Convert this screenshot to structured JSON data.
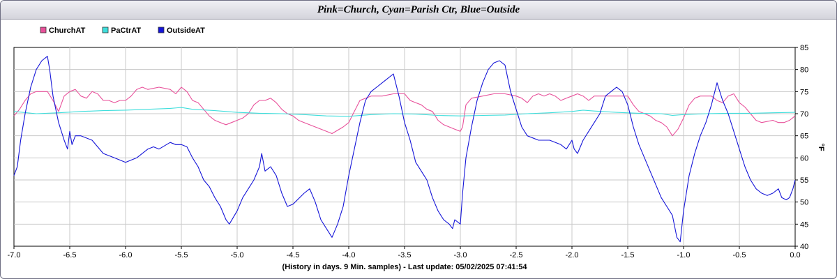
{
  "title": "Pink=Church, Cyan=Parish Ctr, Blue=Outside",
  "chart_data": {
    "type": "line",
    "title": "Pink=Church, Cyan=Parish Ctr, Blue=Outside",
    "xlabel": "(History in days. 9 Min. samples) - Last update: 05/02/2025 07:41:54",
    "ylabel": "°F",
    "xlim": [
      -7.0,
      0.0
    ],
    "ylim": [
      40,
      85
    ],
    "xticks": [
      "-7.0",
      "-6.5",
      "-6.0",
      "-5.5",
      "-5.0",
      "-4.5",
      "-4.0",
      "-3.5",
      "-3.0",
      "-2.5",
      "-2.0",
      "-1.5",
      "-1.0",
      "-0.5",
      "0.0"
    ],
    "yticks": [
      "40",
      "45",
      "50",
      "55",
      "60",
      "65",
      "70",
      "75",
      "80",
      "85"
    ],
    "grid": true,
    "legend_position": "top-left",
    "series": [
      {
        "name": "ChurchAT",
        "color": "#e8509a",
        "points": [
          [
            -7.0,
            69.5
          ],
          [
            -6.95,
            71
          ],
          [
            -6.9,
            73
          ],
          [
            -6.85,
            74.5
          ],
          [
            -6.8,
            75
          ],
          [
            -6.7,
            75
          ],
          [
            -6.65,
            73
          ],
          [
            -6.6,
            70.5
          ],
          [
            -6.55,
            74
          ],
          [
            -6.5,
            75
          ],
          [
            -6.45,
            75.5
          ],
          [
            -6.4,
            74
          ],
          [
            -6.35,
            73.5
          ],
          [
            -6.3,
            75
          ],
          [
            -6.25,
            74.5
          ],
          [
            -6.2,
            73
          ],
          [
            -6.15,
            73
          ],
          [
            -6.1,
            72.5
          ],
          [
            -6.05,
            73
          ],
          [
            -6.0,
            73
          ],
          [
            -5.95,
            74
          ],
          [
            -5.9,
            75.5
          ],
          [
            -5.85,
            76
          ],
          [
            -5.8,
            75.5
          ],
          [
            -5.7,
            76
          ],
          [
            -5.6,
            75.5
          ],
          [
            -5.55,
            74.5
          ],
          [
            -5.5,
            76
          ],
          [
            -5.45,
            75
          ],
          [
            -5.4,
            73
          ],
          [
            -5.35,
            72.5
          ],
          [
            -5.3,
            71
          ],
          [
            -5.25,
            69.5
          ],
          [
            -5.2,
            68.5
          ],
          [
            -5.15,
            68
          ],
          [
            -5.1,
            67.5
          ],
          [
            -5.05,
            68
          ],
          [
            -5.0,
            68.5
          ],
          [
            -4.95,
            69
          ],
          [
            -4.9,
            70
          ],
          [
            -4.85,
            72
          ],
          [
            -4.8,
            73
          ],
          [
            -4.75,
            73
          ],
          [
            -4.7,
            73.5
          ],
          [
            -4.65,
            72.5
          ],
          [
            -4.6,
            71
          ],
          [
            -4.55,
            70
          ],
          [
            -4.5,
            69.5
          ],
          [
            -4.45,
            68.5
          ],
          [
            -4.4,
            68
          ],
          [
            -4.3,
            67
          ],
          [
            -4.2,
            66
          ],
          [
            -4.15,
            65.5
          ],
          [
            -4.05,
            67
          ],
          [
            -4.0,
            68
          ],
          [
            -3.95,
            70.5
          ],
          [
            -3.9,
            73
          ],
          [
            -3.8,
            74
          ],
          [
            -3.7,
            74
          ],
          [
            -3.6,
            74.5
          ],
          [
            -3.5,
            74.5
          ],
          [
            -3.45,
            73
          ],
          [
            -3.4,
            72.5
          ],
          [
            -3.35,
            72
          ],
          [
            -3.3,
            71
          ],
          [
            -3.25,
            70.5
          ],
          [
            -3.2,
            68.5
          ],
          [
            -3.15,
            67.5
          ],
          [
            -3.1,
            67
          ],
          [
            -3.05,
            66.5
          ],
          [
            -3.0,
            66
          ],
          [
            -2.98,
            67
          ],
          [
            -2.95,
            72
          ],
          [
            -2.9,
            73.5
          ],
          [
            -2.8,
            74
          ],
          [
            -2.7,
            74.5
          ],
          [
            -2.6,
            74.5
          ],
          [
            -2.5,
            74
          ],
          [
            -2.45,
            73.5
          ],
          [
            -2.4,
            72.5
          ],
          [
            -2.35,
            74
          ],
          [
            -2.3,
            74.5
          ],
          [
            -2.25,
            74
          ],
          [
            -2.2,
            74.5
          ],
          [
            -2.15,
            74
          ],
          [
            -2.1,
            73
          ],
          [
            -2.05,
            73.5
          ],
          [
            -2.0,
            74
          ],
          [
            -1.95,
            74.5
          ],
          [
            -1.9,
            74
          ],
          [
            -1.85,
            73
          ],
          [
            -1.8,
            74
          ],
          [
            -1.75,
            74
          ],
          [
            -1.7,
            74
          ],
          [
            -1.65,
            74
          ],
          [
            -1.6,
            74
          ],
          [
            -1.55,
            74
          ],
          [
            -1.5,
            74
          ],
          [
            -1.45,
            72
          ],
          [
            -1.4,
            70.5
          ],
          [
            -1.35,
            70
          ],
          [
            -1.3,
            69.5
          ],
          [
            -1.25,
            68.5
          ],
          [
            -1.2,
            68
          ],
          [
            -1.15,
            67
          ],
          [
            -1.1,
            65
          ],
          [
            -1.05,
            66.5
          ],
          [
            -1.0,
            69
          ],
          [
            -0.95,
            72
          ],
          [
            -0.9,
            73.5
          ],
          [
            -0.85,
            74
          ],
          [
            -0.8,
            74
          ],
          [
            -0.75,
            74
          ],
          [
            -0.7,
            73
          ],
          [
            -0.65,
            72.5
          ],
          [
            -0.6,
            74
          ],
          [
            -0.55,
            74.5
          ],
          [
            -0.5,
            72.5
          ],
          [
            -0.45,
            71.5
          ],
          [
            -0.4,
            70
          ],
          [
            -0.35,
            68.5
          ],
          [
            -0.3,
            68
          ],
          [
            -0.2,
            68.5
          ],
          [
            -0.15,
            68
          ],
          [
            -0.1,
            68
          ],
          [
            -0.05,
            68.5
          ],
          [
            0.0,
            69.5
          ]
        ]
      },
      {
        "name": "PaCtrAT",
        "color": "#3fdedc",
        "points": [
          [
            -7.0,
            70.5
          ],
          [
            -6.8,
            70
          ],
          [
            -6.6,
            70.2
          ],
          [
            -6.4,
            70.5
          ],
          [
            -6.2,
            70.7
          ],
          [
            -6.0,
            70.8
          ],
          [
            -5.8,
            71
          ],
          [
            -5.6,
            71.2
          ],
          [
            -5.5,
            71.4
          ],
          [
            -5.4,
            71
          ],
          [
            -5.2,
            70.7
          ],
          [
            -5.0,
            70.3
          ],
          [
            -4.8,
            70.1
          ],
          [
            -4.6,
            70
          ],
          [
            -4.4,
            69.8
          ],
          [
            -4.2,
            69.5
          ],
          [
            -4.0,
            69.4
          ],
          [
            -3.8,
            69.8
          ],
          [
            -3.6,
            70
          ],
          [
            -3.4,
            69.9
          ],
          [
            -3.2,
            69.6
          ],
          [
            -3.0,
            69.5
          ],
          [
            -2.8,
            69.6
          ],
          [
            -2.6,
            69.7
          ],
          [
            -2.4,
            70
          ],
          [
            -2.2,
            70.2
          ],
          [
            -2.0,
            70.5
          ],
          [
            -1.9,
            70.8
          ],
          [
            -1.8,
            70.6
          ],
          [
            -1.6,
            70.3
          ],
          [
            -1.4,
            70.1
          ],
          [
            -1.2,
            70
          ],
          [
            -1.1,
            69.6
          ],
          [
            -1.0,
            69.8
          ],
          [
            -0.8,
            70
          ],
          [
            -0.6,
            70.1
          ],
          [
            -0.4,
            70.1
          ],
          [
            -0.2,
            70.2
          ],
          [
            0.0,
            70.3
          ]
        ]
      },
      {
        "name": "OutsideAT",
        "color": "#1515d8",
        "points": [
          [
            -7.0,
            56
          ],
          [
            -6.97,
            58
          ],
          [
            -6.94,
            64
          ],
          [
            -6.9,
            70
          ],
          [
            -6.85,
            76
          ],
          [
            -6.8,
            80
          ],
          [
            -6.75,
            82
          ],
          [
            -6.7,
            83
          ],
          [
            -6.68,
            80
          ],
          [
            -6.65,
            74
          ],
          [
            -6.6,
            68
          ],
          [
            -6.55,
            64
          ],
          [
            -6.52,
            62
          ],
          [
            -6.5,
            66
          ],
          [
            -6.48,
            63
          ],
          [
            -6.45,
            65
          ],
          [
            -6.4,
            65
          ],
          [
            -6.3,
            64
          ],
          [
            -6.2,
            61
          ],
          [
            -6.1,
            60
          ],
          [
            -6.0,
            59
          ],
          [
            -5.95,
            59.5
          ],
          [
            -5.9,
            60
          ],
          [
            -5.8,
            62
          ],
          [
            -5.75,
            62.5
          ],
          [
            -5.7,
            62
          ],
          [
            -5.6,
            63.5
          ],
          [
            -5.55,
            63
          ],
          [
            -5.5,
            63
          ],
          [
            -5.45,
            62.5
          ],
          [
            -5.4,
            60
          ],
          [
            -5.35,
            58
          ],
          [
            -5.3,
            55
          ],
          [
            -5.25,
            53.5
          ],
          [
            -5.2,
            51
          ],
          [
            -5.15,
            49
          ],
          [
            -5.1,
            46
          ],
          [
            -5.07,
            45
          ],
          [
            -5.0,
            48
          ],
          [
            -4.95,
            51
          ],
          [
            -4.9,
            53
          ],
          [
            -4.85,
            55
          ],
          [
            -4.8,
            58
          ],
          [
            -4.78,
            61
          ],
          [
            -4.75,
            57
          ],
          [
            -4.7,
            58
          ],
          [
            -4.65,
            56
          ],
          [
            -4.6,
            52
          ],
          [
            -4.55,
            49
          ],
          [
            -4.5,
            49.5
          ],
          [
            -4.4,
            52
          ],
          [
            -4.35,
            53
          ],
          [
            -4.3,
            50
          ],
          [
            -4.25,
            46
          ],
          [
            -4.2,
            44
          ],
          [
            -4.15,
            42
          ],
          [
            -4.1,
            45
          ],
          [
            -4.05,
            49
          ],
          [
            -4.0,
            56
          ],
          [
            -3.95,
            62
          ],
          [
            -3.9,
            68
          ],
          [
            -3.85,
            73
          ],
          [
            -3.8,
            75
          ],
          [
            -3.75,
            76
          ],
          [
            -3.7,
            77
          ],
          [
            -3.65,
            78
          ],
          [
            -3.6,
            79
          ],
          [
            -3.55,
            74
          ],
          [
            -3.5,
            68
          ],
          [
            -3.45,
            64
          ],
          [
            -3.4,
            59
          ],
          [
            -3.35,
            57
          ],
          [
            -3.3,
            55
          ],
          [
            -3.25,
            51
          ],
          [
            -3.2,
            48
          ],
          [
            -3.15,
            46
          ],
          [
            -3.1,
            45
          ],
          [
            -3.07,
            44
          ],
          [
            -3.05,
            46
          ],
          [
            -3.0,
            45
          ],
          [
            -2.98,
            52
          ],
          [
            -2.95,
            60
          ],
          [
            -2.9,
            67
          ],
          [
            -2.85,
            73
          ],
          [
            -2.8,
            77
          ],
          [
            -2.75,
            80
          ],
          [
            -2.7,
            81.5
          ],
          [
            -2.65,
            82
          ],
          [
            -2.6,
            81
          ],
          [
            -2.55,
            75
          ],
          [
            -2.5,
            71
          ],
          [
            -2.45,
            67
          ],
          [
            -2.4,
            65
          ],
          [
            -2.35,
            64.5
          ],
          [
            -2.3,
            64
          ],
          [
            -2.2,
            64
          ],
          [
            -2.1,
            63
          ],
          [
            -2.05,
            62
          ],
          [
            -2.0,
            64
          ],
          [
            -1.98,
            62
          ],
          [
            -1.95,
            61
          ],
          [
            -1.9,
            64
          ],
          [
            -1.85,
            66
          ],
          [
            -1.8,
            68
          ],
          [
            -1.75,
            70
          ],
          [
            -1.7,
            74
          ],
          [
            -1.65,
            75
          ],
          [
            -1.6,
            76
          ],
          [
            -1.55,
            75
          ],
          [
            -1.5,
            72
          ],
          [
            -1.45,
            67
          ],
          [
            -1.4,
            63
          ],
          [
            -1.35,
            60
          ],
          [
            -1.3,
            57
          ],
          [
            -1.25,
            54
          ],
          [
            -1.2,
            51
          ],
          [
            -1.15,
            49
          ],
          [
            -1.1,
            47
          ],
          [
            -1.06,
            42
          ],
          [
            -1.03,
            41
          ],
          [
            -1.0,
            48
          ],
          [
            -0.95,
            56
          ],
          [
            -0.9,
            61
          ],
          [
            -0.85,
            65
          ],
          [
            -0.8,
            68
          ],
          [
            -0.75,
            72
          ],
          [
            -0.7,
            77
          ],
          [
            -0.65,
            73
          ],
          [
            -0.6,
            70
          ],
          [
            -0.55,
            66
          ],
          [
            -0.5,
            62
          ],
          [
            -0.45,
            58
          ],
          [
            -0.4,
            55
          ],
          [
            -0.35,
            53
          ],
          [
            -0.3,
            52
          ],
          [
            -0.25,
            51.5
          ],
          [
            -0.2,
            52
          ],
          [
            -0.15,
            53
          ],
          [
            -0.12,
            51
          ],
          [
            -0.08,
            50.5
          ],
          [
            -0.05,
            51
          ],
          [
            -0.02,
            53
          ],
          [
            0.0,
            55
          ]
        ]
      }
    ]
  }
}
